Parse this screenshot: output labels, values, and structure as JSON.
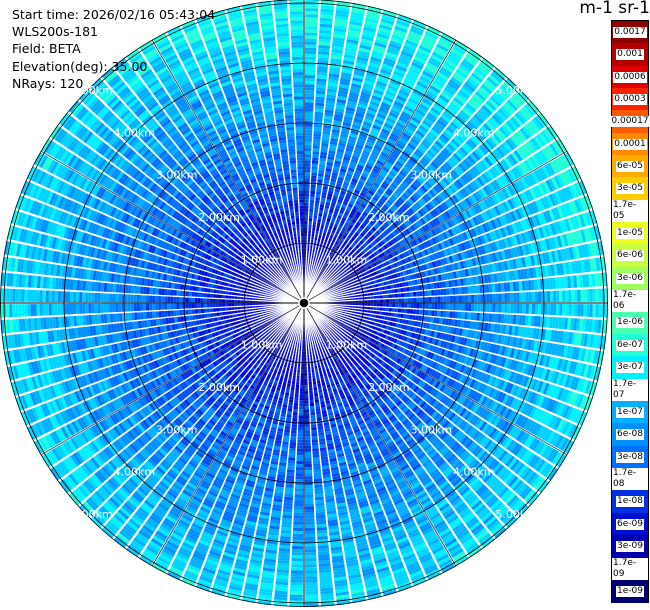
{
  "info": {
    "start_time": "Start time: 2026/02/16 05:43:04",
    "station": "WLS200s-181",
    "field": "Field: BETA",
    "elevation": "Elevation(deg): 35.00",
    "nrays": "NRays: 120"
  },
  "colorbar": {
    "unit_label": "m-1 sr-1",
    "labels": [
      "0.0017",
      "0.001",
      "0.0006",
      "0.0003",
      "0.00017",
      "0.0001",
      "6e-05",
      "3e-05",
      "1.7e-05",
      "1e-05",
      "6e-06",
      "3e-06",
      "1.7e-06",
      "1e-06",
      "6e-07",
      "3e-07",
      "1.7e-07",
      "1e-07",
      "6e-08",
      "3e-08",
      "1.7e-08",
      "1e-08",
      "6e-09",
      "3e-09",
      "1.7e-09",
      "1e-09"
    ],
    "colors": [
      "#8b0000",
      "#b40000",
      "#dc0000",
      "#ff2200",
      "#ff5a00",
      "#ff8a00",
      "#ffaa00",
      "#ffcc00",
      "#ffee00",
      "#eeff20",
      "#c8ff40",
      "#a0ff60",
      "#78ff88",
      "#48ffb0",
      "#20ffd8",
      "#00f0ff",
      "#00d2ff",
      "#00b0ff",
      "#0090ff",
      "#0070ff",
      "#0050f0",
      "#0030e0",
      "#0010d0",
      "#0000b0",
      "#000090",
      "#000070"
    ]
  },
  "chart_data": {
    "type": "heatmap",
    "title": "",
    "ring_labels": [
      "1.00km",
      "2.00km",
      "3.00km",
      "4.00km",
      "5.00km"
    ],
    "nrays": 120,
    "elevation_deg": 35.0
  }
}
